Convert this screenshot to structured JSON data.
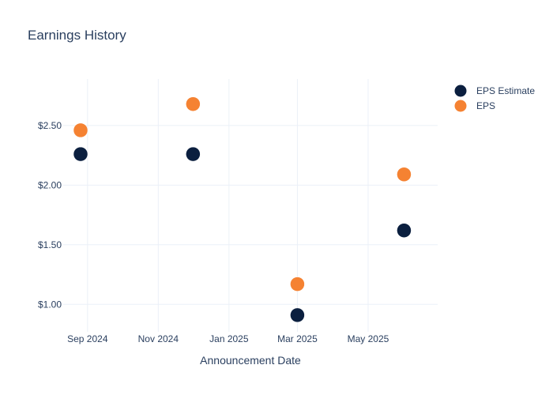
{
  "chart_data": {
    "type": "scatter",
    "title": "Earnings History",
    "xlabel": "Announcement Date",
    "ylabel": "",
    "x_ticks": [
      {
        "date": "2024-09-01",
        "label": "Sep 2024"
      },
      {
        "date": "2024-11-01",
        "label": "Nov 2024"
      },
      {
        "date": "2025-01-01",
        "label": "Jan 2025"
      },
      {
        "date": "2025-03-01",
        "label": "Mar 2025"
      },
      {
        "date": "2025-05-01",
        "label": "May 2025"
      }
    ],
    "y_ticks": [
      {
        "value": 1.0,
        "label": "$1.00"
      },
      {
        "value": 1.5,
        "label": "$1.50"
      },
      {
        "value": 2.0,
        "label": "$2.00"
      },
      {
        "value": 2.5,
        "label": "$2.50"
      }
    ],
    "xlim": [
      "2024-08-11",
      "2025-06-30"
    ],
    "ylim": [
      0.77,
      2.89
    ],
    "grid": true,
    "legend_position": "top-right",
    "series": [
      {
        "name": "EPS Estimate",
        "color": "#0b1f3f",
        "points": [
          {
            "x": "2024-08-26",
            "y": 2.26
          },
          {
            "x": "2024-12-01",
            "y": 2.26
          },
          {
            "x": "2025-03-01",
            "y": 0.91
          },
          {
            "x": "2025-06-01",
            "y": 1.62
          }
        ]
      },
      {
        "name": "EPS",
        "color": "#f58232",
        "points": [
          {
            "x": "2024-08-26",
            "y": 2.46
          },
          {
            "x": "2024-12-01",
            "y": 2.68
          },
          {
            "x": "2025-03-01",
            "y": 1.17
          },
          {
            "x": "2025-06-01",
            "y": 2.09
          }
        ]
      }
    ]
  }
}
